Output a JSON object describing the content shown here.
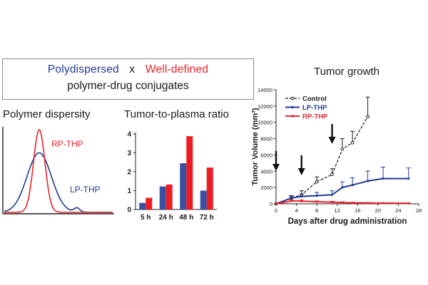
{
  "header": {
    "term_a": "Polydispersed",
    "conjunction": "x",
    "term_b": "Well-defined",
    "subtitle": "polymer-drug conjugates"
  },
  "colors": {
    "blue": "#1f3a93",
    "red": "#e8232a",
    "bar_blue": "#3b4fa3",
    "bar_red": "#ee1d23",
    "dark": "#1a1a1a"
  },
  "chart_data": [
    {
      "type": "line",
      "title": "Polymer dispersity",
      "xlabel": "",
      "ylabel": "",
      "series": [
        {
          "name": "RP-THP",
          "shape": "narrow-gaussian",
          "peak": 1.0,
          "relative_width": 0.45
        },
        {
          "name": "LP-THP",
          "shape": "broad-gaussian",
          "peak": 0.72,
          "relative_width": 1.0
        }
      ]
    },
    {
      "type": "bar",
      "title": "Tumor-to-plasma ratio",
      "categories": [
        "5 h",
        "24 h",
        "48 h",
        "72 h"
      ],
      "series": [
        {
          "values": [
            0.35,
            1.22,
            2.45,
            1.0
          ]
        },
        {
          "values": [
            0.62,
            1.32,
            3.88,
            2.22
          ]
        }
      ],
      "ylim": [
        0,
        4
      ],
      "yticks": [
        "0",
        "1",
        "2",
        "3",
        "4"
      ]
    },
    {
      "type": "line",
      "title": "Tumor growth",
      "xlabel": "Days after drug administration",
      "ylabel": "Tumor Volume (mm³)",
      "xlim": [
        0,
        28
      ],
      "ylim": [
        0,
        14000
      ],
      "xticks": [
        "0",
        "4",
        "8",
        "12",
        "16",
        "20",
        "24",
        "28"
      ],
      "yticks": [
        "0",
        "2000",
        "4000",
        "6000",
        "8000",
        "10000",
        "12000",
        "14000"
      ],
      "legend_position": "top-left",
      "dosing_days": [
        0,
        5,
        11
      ],
      "series": [
        {
          "name": "Control",
          "x": [
            0,
            3,
            5,
            8,
            11,
            13,
            15,
            18
          ],
          "y": [
            0,
            700,
            1100,
            2700,
            3600,
            6700,
            7500,
            10700
          ],
          "err": [
            0,
            300,
            500,
            600,
            700,
            1300,
            1400,
            2400
          ]
        },
        {
          "name": "LP-THP",
          "x": [
            0,
            3,
            5,
            8,
            11,
            13,
            15,
            18,
            21,
            26
          ],
          "y": [
            0,
            700,
            900,
            1000,
            1100,
            2000,
            2300,
            2800,
            3100,
            3100
          ],
          "err": [
            0,
            200,
            300,
            400,
            500,
            700,
            900,
            1200,
            1400,
            1300
          ]
        },
        {
          "name": "RP-THP",
          "x": [
            0,
            3,
            5,
            8,
            11,
            13,
            15,
            18,
            21,
            26
          ],
          "y": [
            0,
            350,
            320,
            250,
            200,
            150,
            120,
            100,
            80,
            60
          ],
          "err": [
            0,
            150,
            150,
            100,
            100,
            80,
            60,
            50,
            40,
            30
          ]
        }
      ]
    }
  ]
}
